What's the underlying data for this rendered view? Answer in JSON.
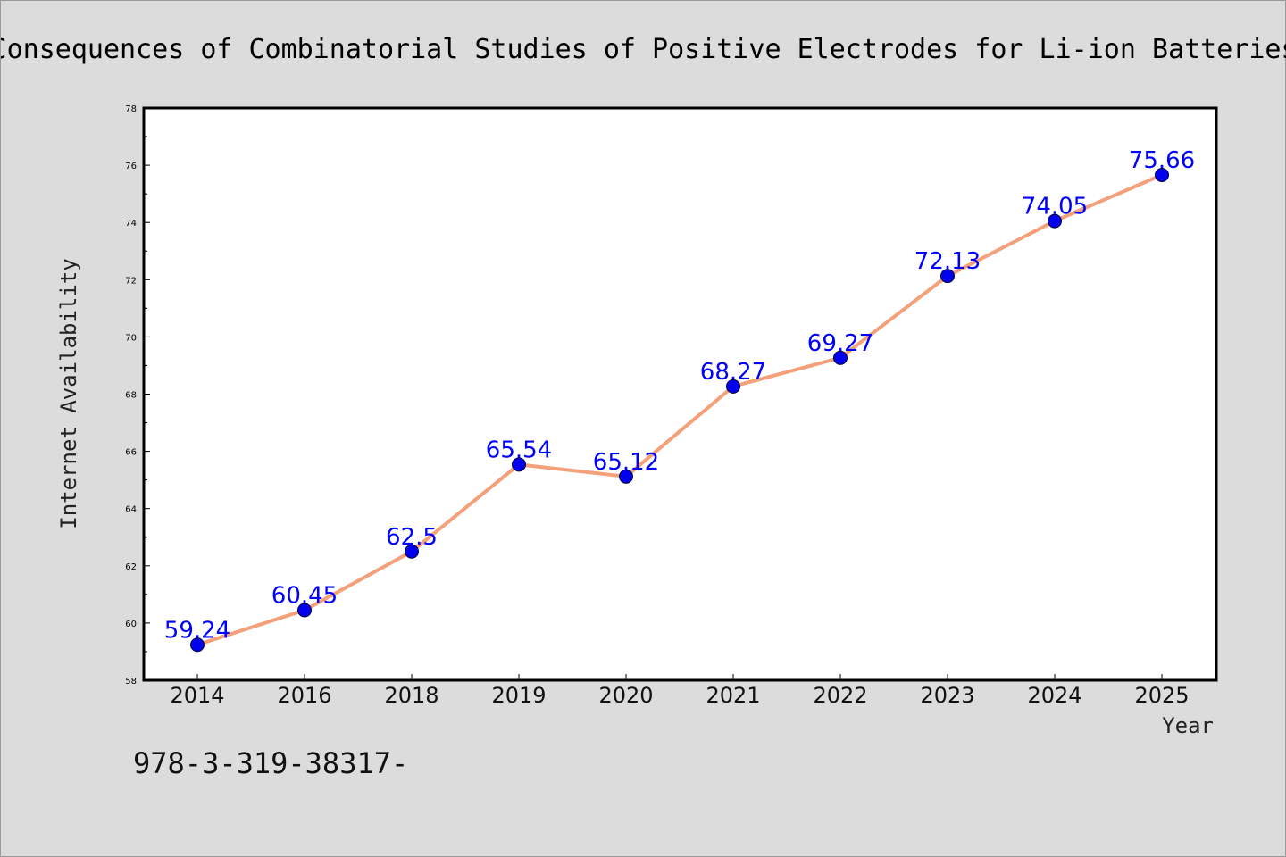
{
  "chart_data": {
    "type": "line",
    "title": "Consequences of Combinatorial Studies of Positive Electrodes for Li-ion Batteries",
    "xlabel": "Year",
    "ylabel": "Internet Availability",
    "categories": [
      "2014",
      "2016",
      "2018",
      "2019",
      "2020",
      "2021",
      "2022",
      "2023",
      "2024",
      "2025"
    ],
    "series": [
      {
        "values": [
          59.24,
          60.45,
          62.5,
          65.54,
          65.12,
          68.27,
          69.27,
          72.13,
          74.05,
          75.66
        ],
        "data_labels": [
          "59.24",
          "60.45",
          "62.5",
          "65.54",
          "65.12",
          "68.27",
          "69.27",
          "72.13",
          "74.05",
          "75.66"
        ],
        "line_color": "#f4a07a",
        "marker_color": "#0000ee"
      }
    ],
    "ylim": [
      58,
      78
    ],
    "yticks": [
      58,
      60,
      62,
      64,
      66,
      68,
      70,
      72,
      74,
      76,
      78
    ],
    "grid": false,
    "legend": "none"
  },
  "footnote": "978-3-319-38317-",
  "colors": {
    "figure_background": "#dcdcdc",
    "plot_background": "#ffffff",
    "data_label": "#0000ff"
  }
}
